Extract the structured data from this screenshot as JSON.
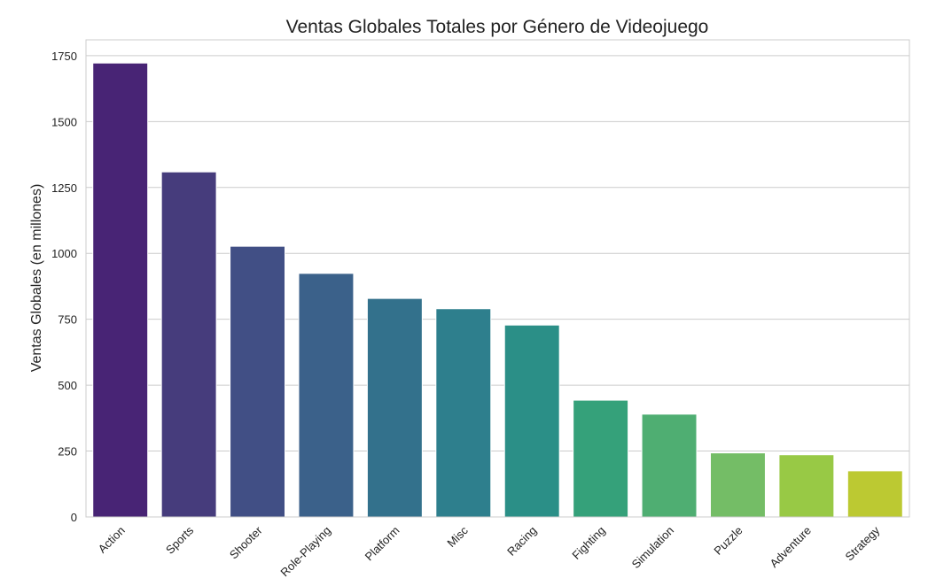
{
  "chart_data": {
    "type": "bar",
    "title": "Ventas Globales Totales por Género de Videojuego",
    "xlabel": "",
    "ylabel": "Ventas Globales (en millones)",
    "categories": [
      "Action",
      "Sports",
      "Shooter",
      "Role-Playing",
      "Platform",
      "Misc",
      "Racing",
      "Fighting",
      "Simulation",
      "Puzzle",
      "Adventure",
      "Strategy"
    ],
    "values": [
      1722,
      1309,
      1027,
      924,
      829,
      790,
      728,
      443,
      390,
      243,
      236,
      175
    ],
    "colors": [
      "#482475",
      "#463c7c",
      "#414f85",
      "#3b618a",
      "#33718c",
      "#2e7f8d",
      "#2b8f87",
      "#35a17a",
      "#4fae72",
      "#74bd66",
      "#98c945",
      "#bcc932"
    ],
    "yticks": [
      0,
      250,
      500,
      750,
      1000,
      1250,
      1500,
      1750
    ],
    "ytick_labels": [
      "0",
      "250",
      "500",
      "750",
      "1000",
      "1250",
      "1500",
      "1750"
    ],
    "ylim": [
      0,
      1810
    ],
    "grid": "horizontal",
    "x_tick_rotation": 45
  }
}
